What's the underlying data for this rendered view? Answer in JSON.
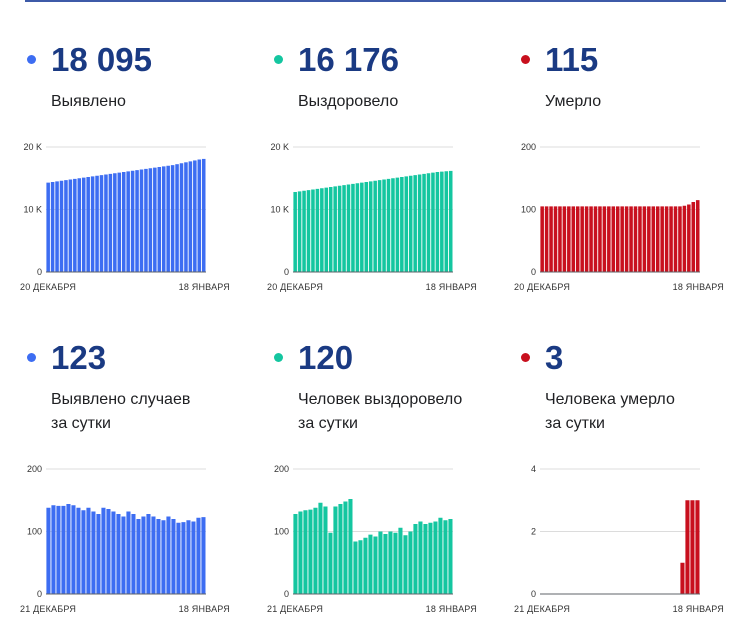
{
  "colors": {
    "rule": "#3d5aa8",
    "grid": "#dcdcdc",
    "axis": "#5f6368"
  },
  "panels": [
    {
      "value": "18 095",
      "label_lines": [
        "Выявлено"
      ],
      "color": "#3d6df2",
      "chart_data": {
        "type": "bar",
        "x_start_label": "20 ДЕКАБРЯ",
        "x_end_label": "18 ЯНВАРЯ",
        "y_ticks": [
          {
            "v": 0,
            "t": "0"
          },
          {
            "v": 10000,
            "t": "10 K"
          },
          {
            "v": 20000,
            "t": "20 K"
          }
        ],
        "ylim": [
          0,
          20000
        ],
        "values": [
          14300,
          14400,
          14500,
          14600,
          14700,
          14800,
          14900,
          15000,
          15100,
          15200,
          15300,
          15400,
          15500,
          15600,
          15700,
          15800,
          15900,
          16000,
          16100,
          16200,
          16300,
          16400,
          16500,
          16600,
          16700,
          16800,
          16900,
          17000,
          17100,
          17250,
          17400,
          17550,
          17700,
          17850,
          18000,
          18095
        ]
      }
    },
    {
      "value": "16 176",
      "label_lines": [
        "Выздоровело"
      ],
      "color": "#14c6a0",
      "chart_data": {
        "type": "bar",
        "x_start_label": "20 ДЕКАБРЯ",
        "x_end_label": "18 ЯНВАРЯ",
        "y_ticks": [
          {
            "v": 0,
            "t": "0"
          },
          {
            "v": 10000,
            "t": "10 K"
          },
          {
            "v": 20000,
            "t": "20 K"
          }
        ],
        "ylim": [
          0,
          20000
        ],
        "values": [
          12800,
          12900,
          13000,
          13100,
          13200,
          13300,
          13400,
          13500,
          13600,
          13700,
          13800,
          13900,
          14000,
          14100,
          14200,
          14300,
          14400,
          14500,
          14600,
          14700,
          14800,
          14900,
          15000,
          15100,
          15200,
          15300,
          15400,
          15500,
          15600,
          15700,
          15800,
          15900,
          16000,
          16060,
          16120,
          16176
        ]
      }
    },
    {
      "value": "115",
      "label_lines": [
        "Умерло"
      ],
      "color": "#c8101e",
      "chart_data": {
        "type": "bar",
        "x_start_label": "20 ДЕКАБРЯ",
        "x_end_label": "18 ЯНВАРЯ",
        "y_ticks": [
          {
            "v": 0,
            "t": "0"
          },
          {
            "v": 100,
            "t": "100"
          },
          {
            "v": 200,
            "t": "200"
          }
        ],
        "ylim": [
          0,
          200
        ],
        "values": [
          105,
          105,
          105,
          105,
          105,
          105,
          105,
          105,
          105,
          105,
          105,
          105,
          105,
          105,
          105,
          105,
          105,
          105,
          105,
          105,
          105,
          105,
          105,
          105,
          105,
          105,
          105,
          105,
          105,
          105,
          105,
          105,
          106,
          108,
          112,
          115
        ]
      }
    },
    {
      "value": "123",
      "label_lines": [
        "Выявлено случаев",
        "за сутки"
      ],
      "color": "#3d6df2",
      "chart_data": {
        "type": "bar",
        "x_start_label": "21 ДЕКАБРЯ",
        "x_end_label": "18 ЯНВАРЯ",
        "y_ticks": [
          {
            "v": 0,
            "t": "0"
          },
          {
            "v": 100,
            "t": "100"
          },
          {
            "v": 200,
            "t": "200"
          }
        ],
        "ylim": [
          0,
          200
        ],
        "values": [
          138,
          142,
          141,
          141,
          144,
          142,
          138,
          134,
          138,
          132,
          128,
          138,
          136,
          132,
          128,
          124,
          132,
          128,
          120,
          124,
          128,
          124,
          120,
          118,
          124,
          120,
          114,
          115,
          118,
          116,
          122,
          123
        ]
      }
    },
    {
      "value": "120",
      "label_lines": [
        "Человек выздоровело",
        "за сутки"
      ],
      "color": "#14c6a0",
      "chart_data": {
        "type": "bar",
        "x_start_label": "21 ДЕКАБРЯ",
        "x_end_label": "18 ЯНВАРЯ",
        "y_ticks": [
          {
            "v": 0,
            "t": "0"
          },
          {
            "v": 100,
            "t": "100"
          },
          {
            "v": 200,
            "t": "200"
          }
        ],
        "ylim": [
          0,
          200
        ],
        "values": [
          128,
          132,
          134,
          135,
          138,
          146,
          140,
          98,
          140,
          144,
          148,
          152,
          84,
          86,
          90,
          95,
          92,
          100,
          96,
          100,
          98,
          106,
          94,
          100,
          112,
          116,
          112,
          114,
          116,
          122,
          118,
          120
        ]
      }
    },
    {
      "value": "3",
      "label_lines": [
        "Человека умерло",
        "за сутки"
      ],
      "color": "#c8101e",
      "chart_data": {
        "type": "bar",
        "x_start_label": "21 ДЕКАБРЯ",
        "x_end_label": "18 ЯНВАРЯ",
        "y_ticks": [
          {
            "v": 0,
            "t": "0"
          },
          {
            "v": 2,
            "t": "2"
          },
          {
            "v": 4,
            "t": "4"
          }
        ],
        "ylim": [
          0,
          4
        ],
        "values": [
          0,
          0,
          0,
          0,
          0,
          0,
          0,
          0,
          0,
          0,
          0,
          0,
          0,
          0,
          0,
          0,
          0,
          0,
          0,
          0,
          0,
          0,
          0,
          0,
          0,
          0,
          0,
          0,
          1,
          3,
          3,
          3
        ]
      }
    }
  ]
}
